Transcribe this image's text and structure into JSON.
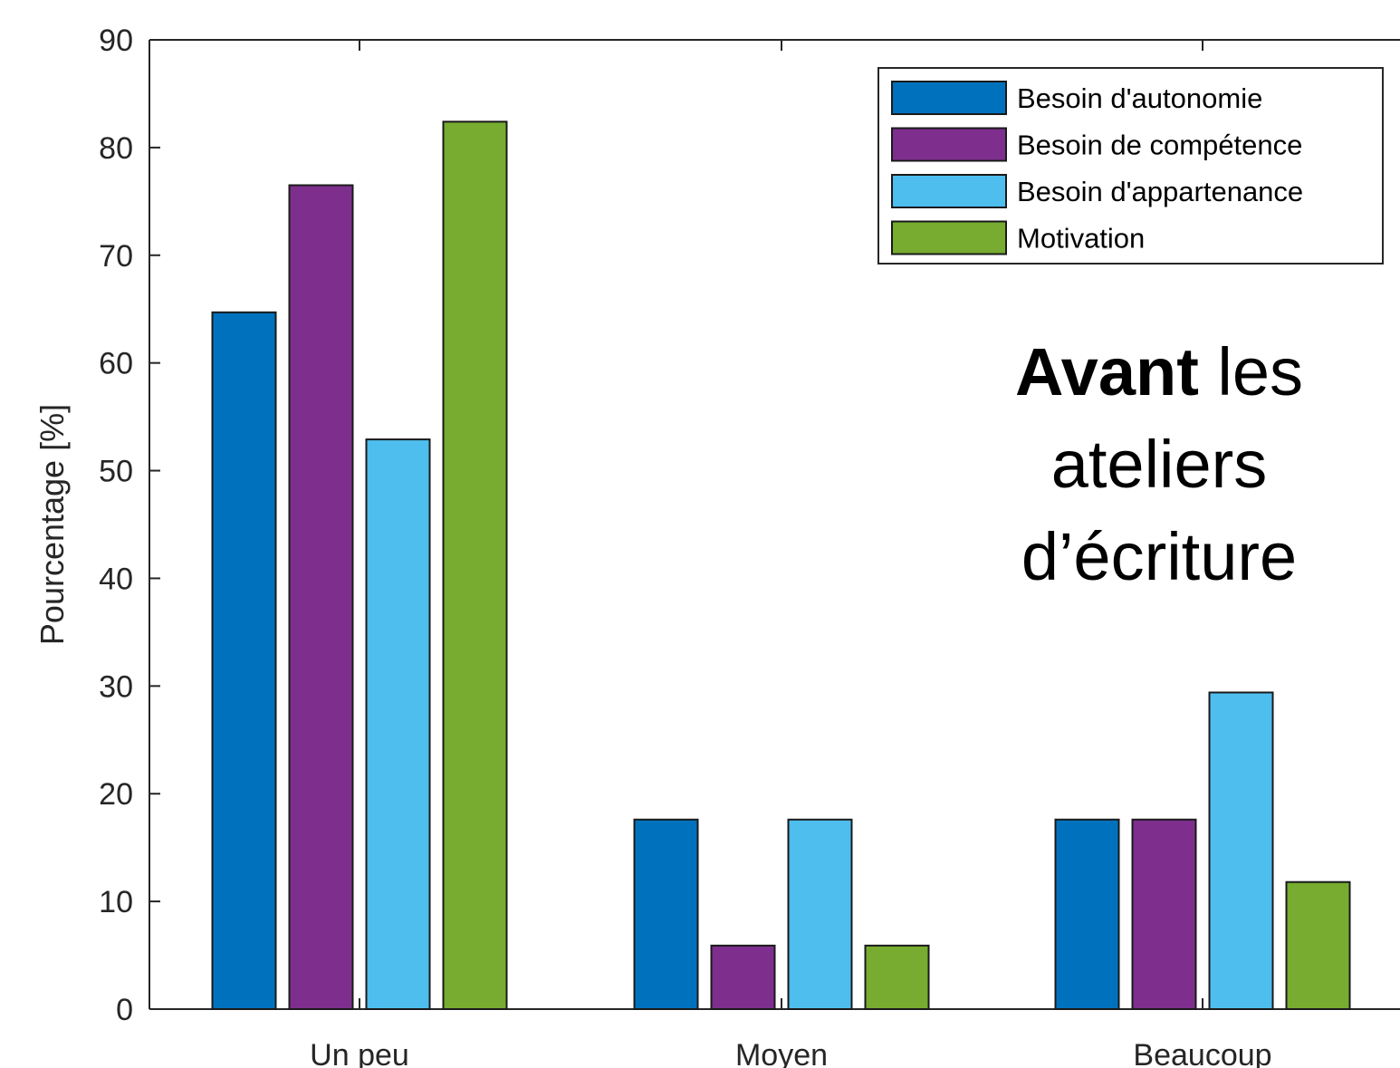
{
  "chart_data": {
    "type": "bar",
    "categories": [
      "Un peu",
      "Moyen",
      "Beaucoup"
    ],
    "series": [
      {
        "name": "Besoin d'autonomie",
        "color": "#0072BD",
        "values": [
          64.7,
          17.6,
          17.6
        ]
      },
      {
        "name": "Besoin de compétence",
        "color": "#7E2F8E",
        "values": [
          76.5,
          5.9,
          17.6
        ]
      },
      {
        "name": "Besoin d'appartenance",
        "color": "#4DBEEE",
        "values": [
          52.9,
          17.6,
          29.4
        ]
      },
      {
        "name": "Motivation",
        "color": "#77AC30",
        "values": [
          82.4,
          5.9,
          11.8
        ]
      }
    ],
    "xlabel": "",
    "ylabel": "Pourcentage [%]",
    "ylim": [
      0,
      90
    ],
    "yticks": [
      "0",
      "10",
      "20",
      "30",
      "40",
      "50",
      "60",
      "70",
      "80",
      "90"
    ],
    "grid": false,
    "legend_position": "top-right",
    "annotation": {
      "bold": "Avant",
      "line1_rest": " les",
      "line2": "ateliers",
      "line3": "d’écriture"
    }
  }
}
